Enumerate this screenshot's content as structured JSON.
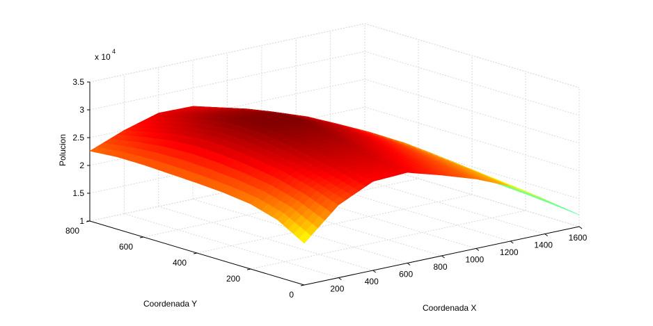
{
  "chart_data": {
    "type": "surface",
    "title": "",
    "xlabel": "Coordenada X",
    "ylabel": "Coordenada Y",
    "zlabel": "Polucion",
    "z_exponent_label": "x 10",
    "z_exponent_power": "4",
    "xlim": [
      0,
      1600
    ],
    "ylim": [
      0,
      800
    ],
    "zlim": [
      10000,
      35000
    ],
    "x_ticks": [
      200,
      400,
      600,
      800,
      1000,
      1200,
      1400,
      1600
    ],
    "y_ticks": [
      0,
      200,
      400,
      600,
      800
    ],
    "z_ticks": [
      1,
      1.5,
      2,
      2.5,
      3,
      3.5
    ],
    "grid": true,
    "colormap": "jet",
    "x_samples": [
      0,
      200,
      400,
      600,
      800,
      1000,
      1200,
      1400,
      1600
    ],
    "y_samples": [
      0,
      100,
      200,
      300,
      400,
      500,
      600,
      700,
      800
    ],
    "z_values_units": "x 10^4",
    "z_values": [
      [
        1.75,
        2.31,
        2.6,
        2.63,
        2.45,
        2.25,
        1.99,
        1.62,
        1.21
      ],
      [
        2.03,
        2.48,
        2.71,
        2.72,
        2.54,
        2.32,
        2.05,
        1.68,
        1.26
      ],
      [
        2.17,
        2.61,
        2.82,
        2.82,
        2.63,
        2.39,
        2.11,
        1.73,
        1.3
      ],
      [
        2.23,
        2.69,
        2.92,
        2.93,
        2.73,
        2.46,
        2.16,
        1.77,
        1.33
      ],
      [
        2.26,
        2.75,
        3.0,
        3.02,
        2.8,
        2.52,
        2.2,
        1.8,
        1.35
      ],
      [
        2.28,
        2.77,
        3.0,
        3.0,
        2.78,
        2.5,
        2.18,
        1.79,
        1.34
      ],
      [
        2.3,
        2.72,
        2.92,
        2.91,
        2.7,
        2.44,
        2.13,
        1.75,
        1.31
      ],
      [
        2.3,
        2.62,
        2.8,
        2.79,
        2.6,
        2.35,
        2.06,
        1.69,
        1.27
      ],
      [
        2.26,
        2.5,
        2.68,
        2.67,
        2.49,
        2.26,
        1.99,
        1.63,
        1.23
      ]
    ]
  }
}
